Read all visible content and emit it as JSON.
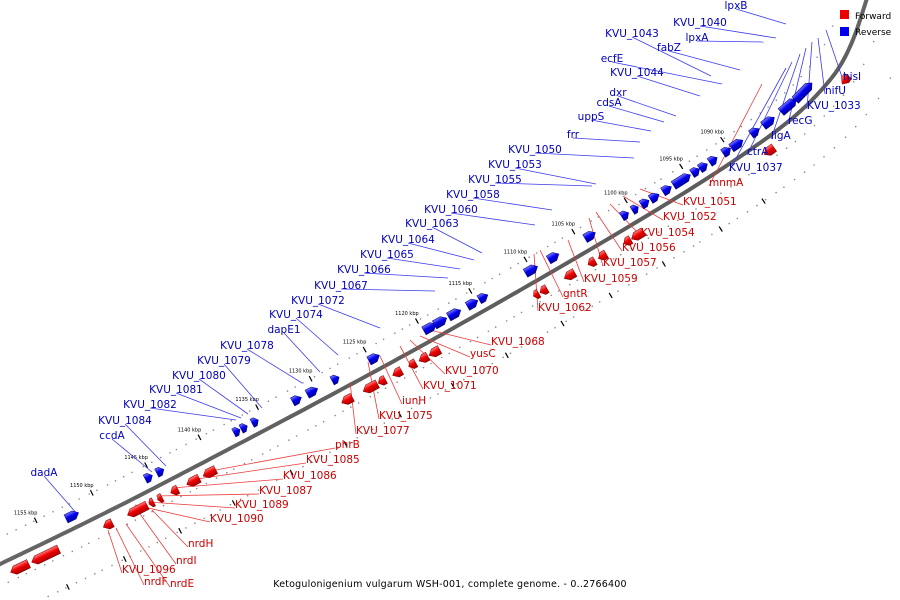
{
  "legend": {
    "forward_label": "Forward",
    "reverse_label": "Reverse",
    "forward_color": "#ee0000",
    "reverse_color": "#0000ee"
  },
  "caption": "Ketogulonigenium vulgarum WSH-001, complete genome. - 0..2766400",
  "colors": {
    "backbone": "#555555",
    "forward_label": "#cc0000",
    "reverse_label": "#0000bb"
  },
  "ticks": [
    "1090 kbp",
    "1095 kbp",
    "1100 kbp",
    "1105 kbp",
    "1110 kbp",
    "1115 kbp",
    "1120 kbp",
    "1125 kbp",
    "1130 kbp",
    "1135 kbp",
    "1140 kbp",
    "1145 kbp",
    "1150 kbp",
    "1155 kbp"
  ],
  "reverse_genes": [
    "lpxB",
    "KVU_1040",
    "KVU_1043",
    "lpxA",
    "fabZ",
    "ecfE",
    "KVU_1044",
    "dxr",
    "cdsA",
    "uppS",
    "frr",
    "KVU_1050",
    "KVU_1053",
    "KVU_1055",
    "KVU_1058",
    "KVU_1060",
    "KVU_1063",
    "KVU_1064",
    "KVU_1065",
    "KVU_1066",
    "KVU_1067",
    "KVU_1072",
    "KVU_1074",
    "dapE1",
    "KVU_1078",
    "KVU_1079",
    "KVU_1080",
    "KVU_1081",
    "KVU_1082",
    "KVU_1084",
    "ccdA",
    "dadA",
    "hisI",
    "nifU",
    "KVU_1033",
    "recG",
    "ligA",
    "ctrA",
    "KVU_1037"
  ],
  "forward_genes": [
    "mnmA",
    "KVU_1051",
    "KVU_1052",
    "KVU_1054",
    "KVU_1056",
    "KVU_1057",
    "KVU_1059",
    "gntR",
    "KVU_1062",
    "KVU_1068",
    "yusC",
    "KVU_1070",
    "KVU_1071",
    "iunH",
    "KVU_1075",
    "KVU_1077",
    "phrB",
    "KVU_1085",
    "KVU_1086",
    "KVU_1087",
    "KVU_1089",
    "KVU_1090",
    "nrdH",
    "nrdI",
    "KVU_1096",
    "nrdF",
    "nrdE"
  ]
}
